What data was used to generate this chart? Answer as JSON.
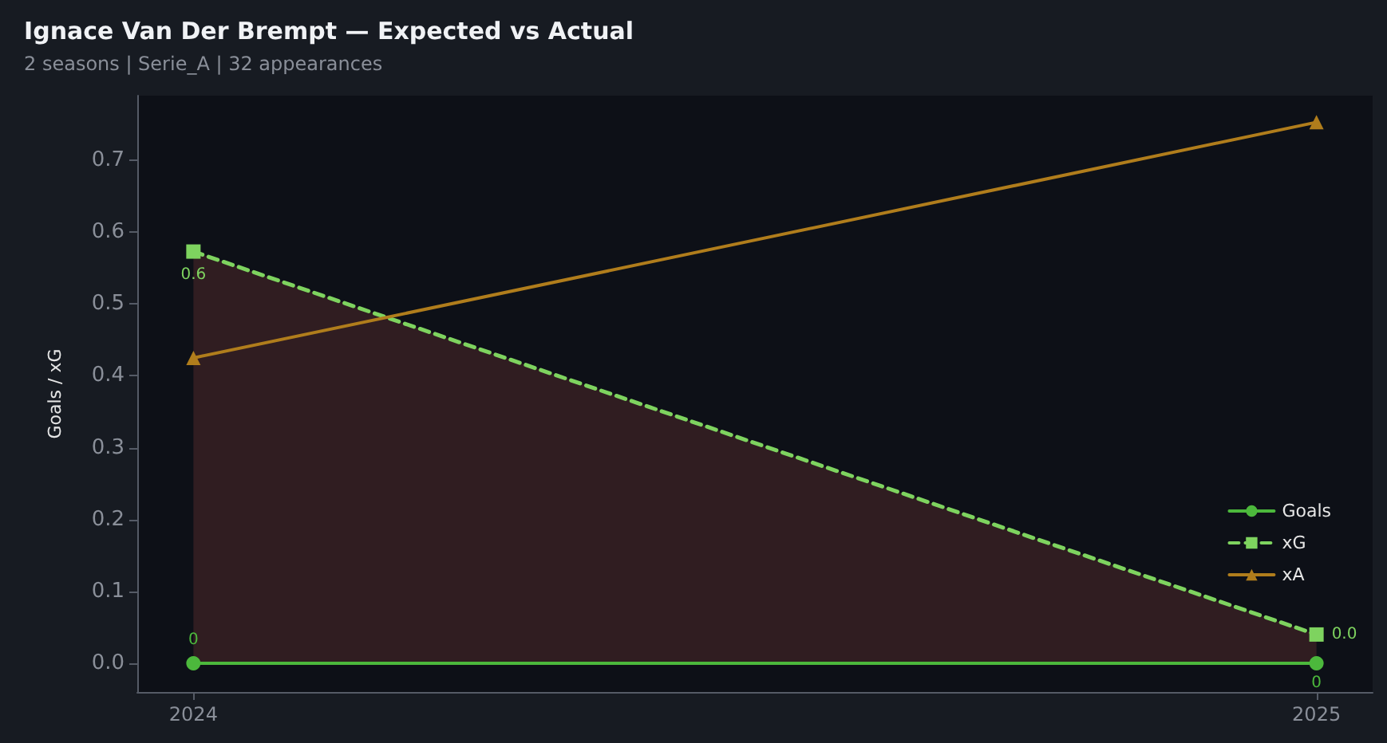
{
  "chart_data": {
    "type": "line",
    "title": "Ignace Van Der Brempt — Expected vs Actual",
    "subtitle": "2 seasons | Serie_A | 32 appearances",
    "ylabel": "Goals / xG",
    "x": [
      2024,
      2025
    ],
    "xlim": [
      2023.95,
      2025.05
    ],
    "xticks": [
      2024,
      2025
    ],
    "ylim": [
      -0.04,
      0.79
    ],
    "yticks": [
      {
        "value": 0,
        "label": "0.0"
      },
      {
        "value": 0.1,
        "label": "0.1"
      },
      {
        "value": 0.2,
        "label": "0.2"
      },
      {
        "value": 0.3,
        "label": "0.3"
      },
      {
        "value": 0.4,
        "label": "0.4"
      },
      {
        "value": 0.5,
        "label": "0.5"
      },
      {
        "value": 0.6,
        "label": "0.6"
      },
      {
        "value": 0.7,
        "label": "0.7"
      }
    ],
    "series": [
      {
        "name": "Goals",
        "color": "#4cb83c",
        "values": [
          0,
          0
        ],
        "marker": "circle",
        "line_style": "solid",
        "value_labels": [
          "0",
          "0"
        ]
      },
      {
        "name": "xG",
        "color": "#7ed35f",
        "values": [
          0.573,
          0.04
        ],
        "marker": "square",
        "line_style": "dashed",
        "value_labels": [
          "0.6",
          "0.0"
        ],
        "lower": [
          0,
          0
        ],
        "upper": [
          0.573,
          0.04
        ]
      },
      {
        "name": "xA",
        "color": "#b07d1c",
        "values": [
          0.425,
          0.753
        ],
        "marker": "triangle",
        "line_style": "solid"
      }
    ],
    "grid": false,
    "legend": "bottom right"
  }
}
